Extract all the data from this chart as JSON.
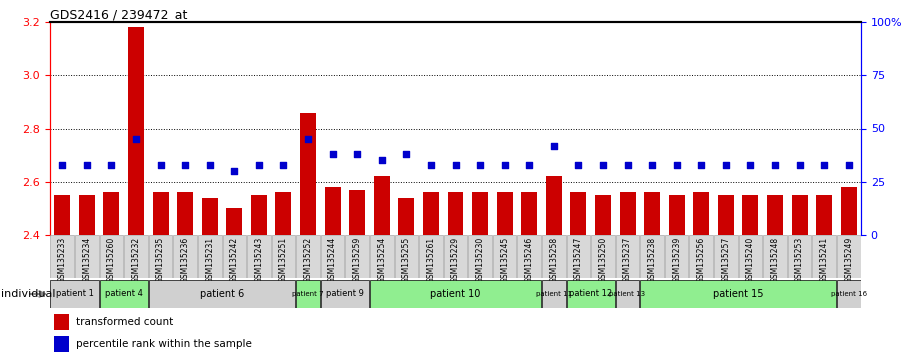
{
  "title": "GDS2416 / 239472_at",
  "samples": [
    "GSM135233",
    "GSM135234",
    "GSM135260",
    "GSM135232",
    "GSM135235",
    "GSM135236",
    "GSM135231",
    "GSM135242",
    "GSM135243",
    "GSM135251",
    "GSM135252",
    "GSM135244",
    "GSM135259",
    "GSM135254",
    "GSM135255",
    "GSM135261",
    "GSM135229",
    "GSM135230",
    "GSM135245",
    "GSM135246",
    "GSM135258",
    "GSM135247",
    "GSM135250",
    "GSM135237",
    "GSM135238",
    "GSM135239",
    "GSM135256",
    "GSM135257",
    "GSM135240",
    "GSM135248",
    "GSM135253",
    "GSM135241",
    "GSM135249"
  ],
  "bar_values": [
    2.55,
    2.55,
    2.56,
    3.18,
    2.56,
    2.56,
    2.54,
    2.5,
    2.55,
    2.56,
    2.86,
    2.58,
    2.57,
    2.62,
    2.54,
    2.56,
    2.56,
    2.56,
    2.56,
    2.56,
    2.62,
    2.56,
    2.55,
    2.56,
    2.56,
    2.55,
    2.56,
    2.55,
    2.55,
    2.55,
    2.55,
    2.55,
    2.58
  ],
  "dot_pct": [
    33,
    33,
    33,
    45,
    33,
    33,
    33,
    30,
    33,
    33,
    45,
    38,
    38,
    35,
    38,
    33,
    33,
    33,
    33,
    33,
    42,
    33,
    33,
    33,
    33,
    33,
    33,
    33,
    33,
    33,
    33,
    33,
    33
  ],
  "patients": [
    {
      "label": "patient 1",
      "start": 0,
      "end": 2,
      "color": "#d0d0d0"
    },
    {
      "label": "patient 4",
      "start": 2,
      "end": 4,
      "color": "#90ee90"
    },
    {
      "label": "patient 6",
      "start": 4,
      "end": 10,
      "color": "#d0d0d0"
    },
    {
      "label": "patient 7",
      "start": 10,
      "end": 11,
      "color": "#90ee90"
    },
    {
      "label": "patient 9",
      "start": 11,
      "end": 13,
      "color": "#d0d0d0"
    },
    {
      "label": "patient 10",
      "start": 13,
      "end": 20,
      "color": "#90ee90"
    },
    {
      "label": "patient 11",
      "start": 20,
      "end": 21,
      "color": "#d0d0d0"
    },
    {
      "label": "patient 12",
      "start": 21,
      "end": 23,
      "color": "#90ee90"
    },
    {
      "label": "patient 13",
      "start": 23,
      "end": 24,
      "color": "#d0d0d0"
    },
    {
      "label": "patient 15",
      "start": 24,
      "end": 32,
      "color": "#90ee90"
    },
    {
      "label": "patient 16",
      "start": 32,
      "end": 33,
      "color": "#d0d0d0"
    }
  ],
  "ylim_left": [
    2.4,
    3.2
  ],
  "yticks_left": [
    2.4,
    2.6,
    2.8,
    3.0,
    3.2
  ],
  "ylim_right": [
    0,
    100
  ],
  "yticks_right": [
    0,
    25,
    50,
    75,
    100
  ],
  "bar_color": "#cc0000",
  "dot_color": "#0000cc",
  "bar_bottom": 2.4,
  "hline_values": [
    2.6,
    2.8,
    3.0
  ],
  "legend_bar": "transformed count",
  "legend_dot": "percentile rank within the sample",
  "individual_label": "individual"
}
